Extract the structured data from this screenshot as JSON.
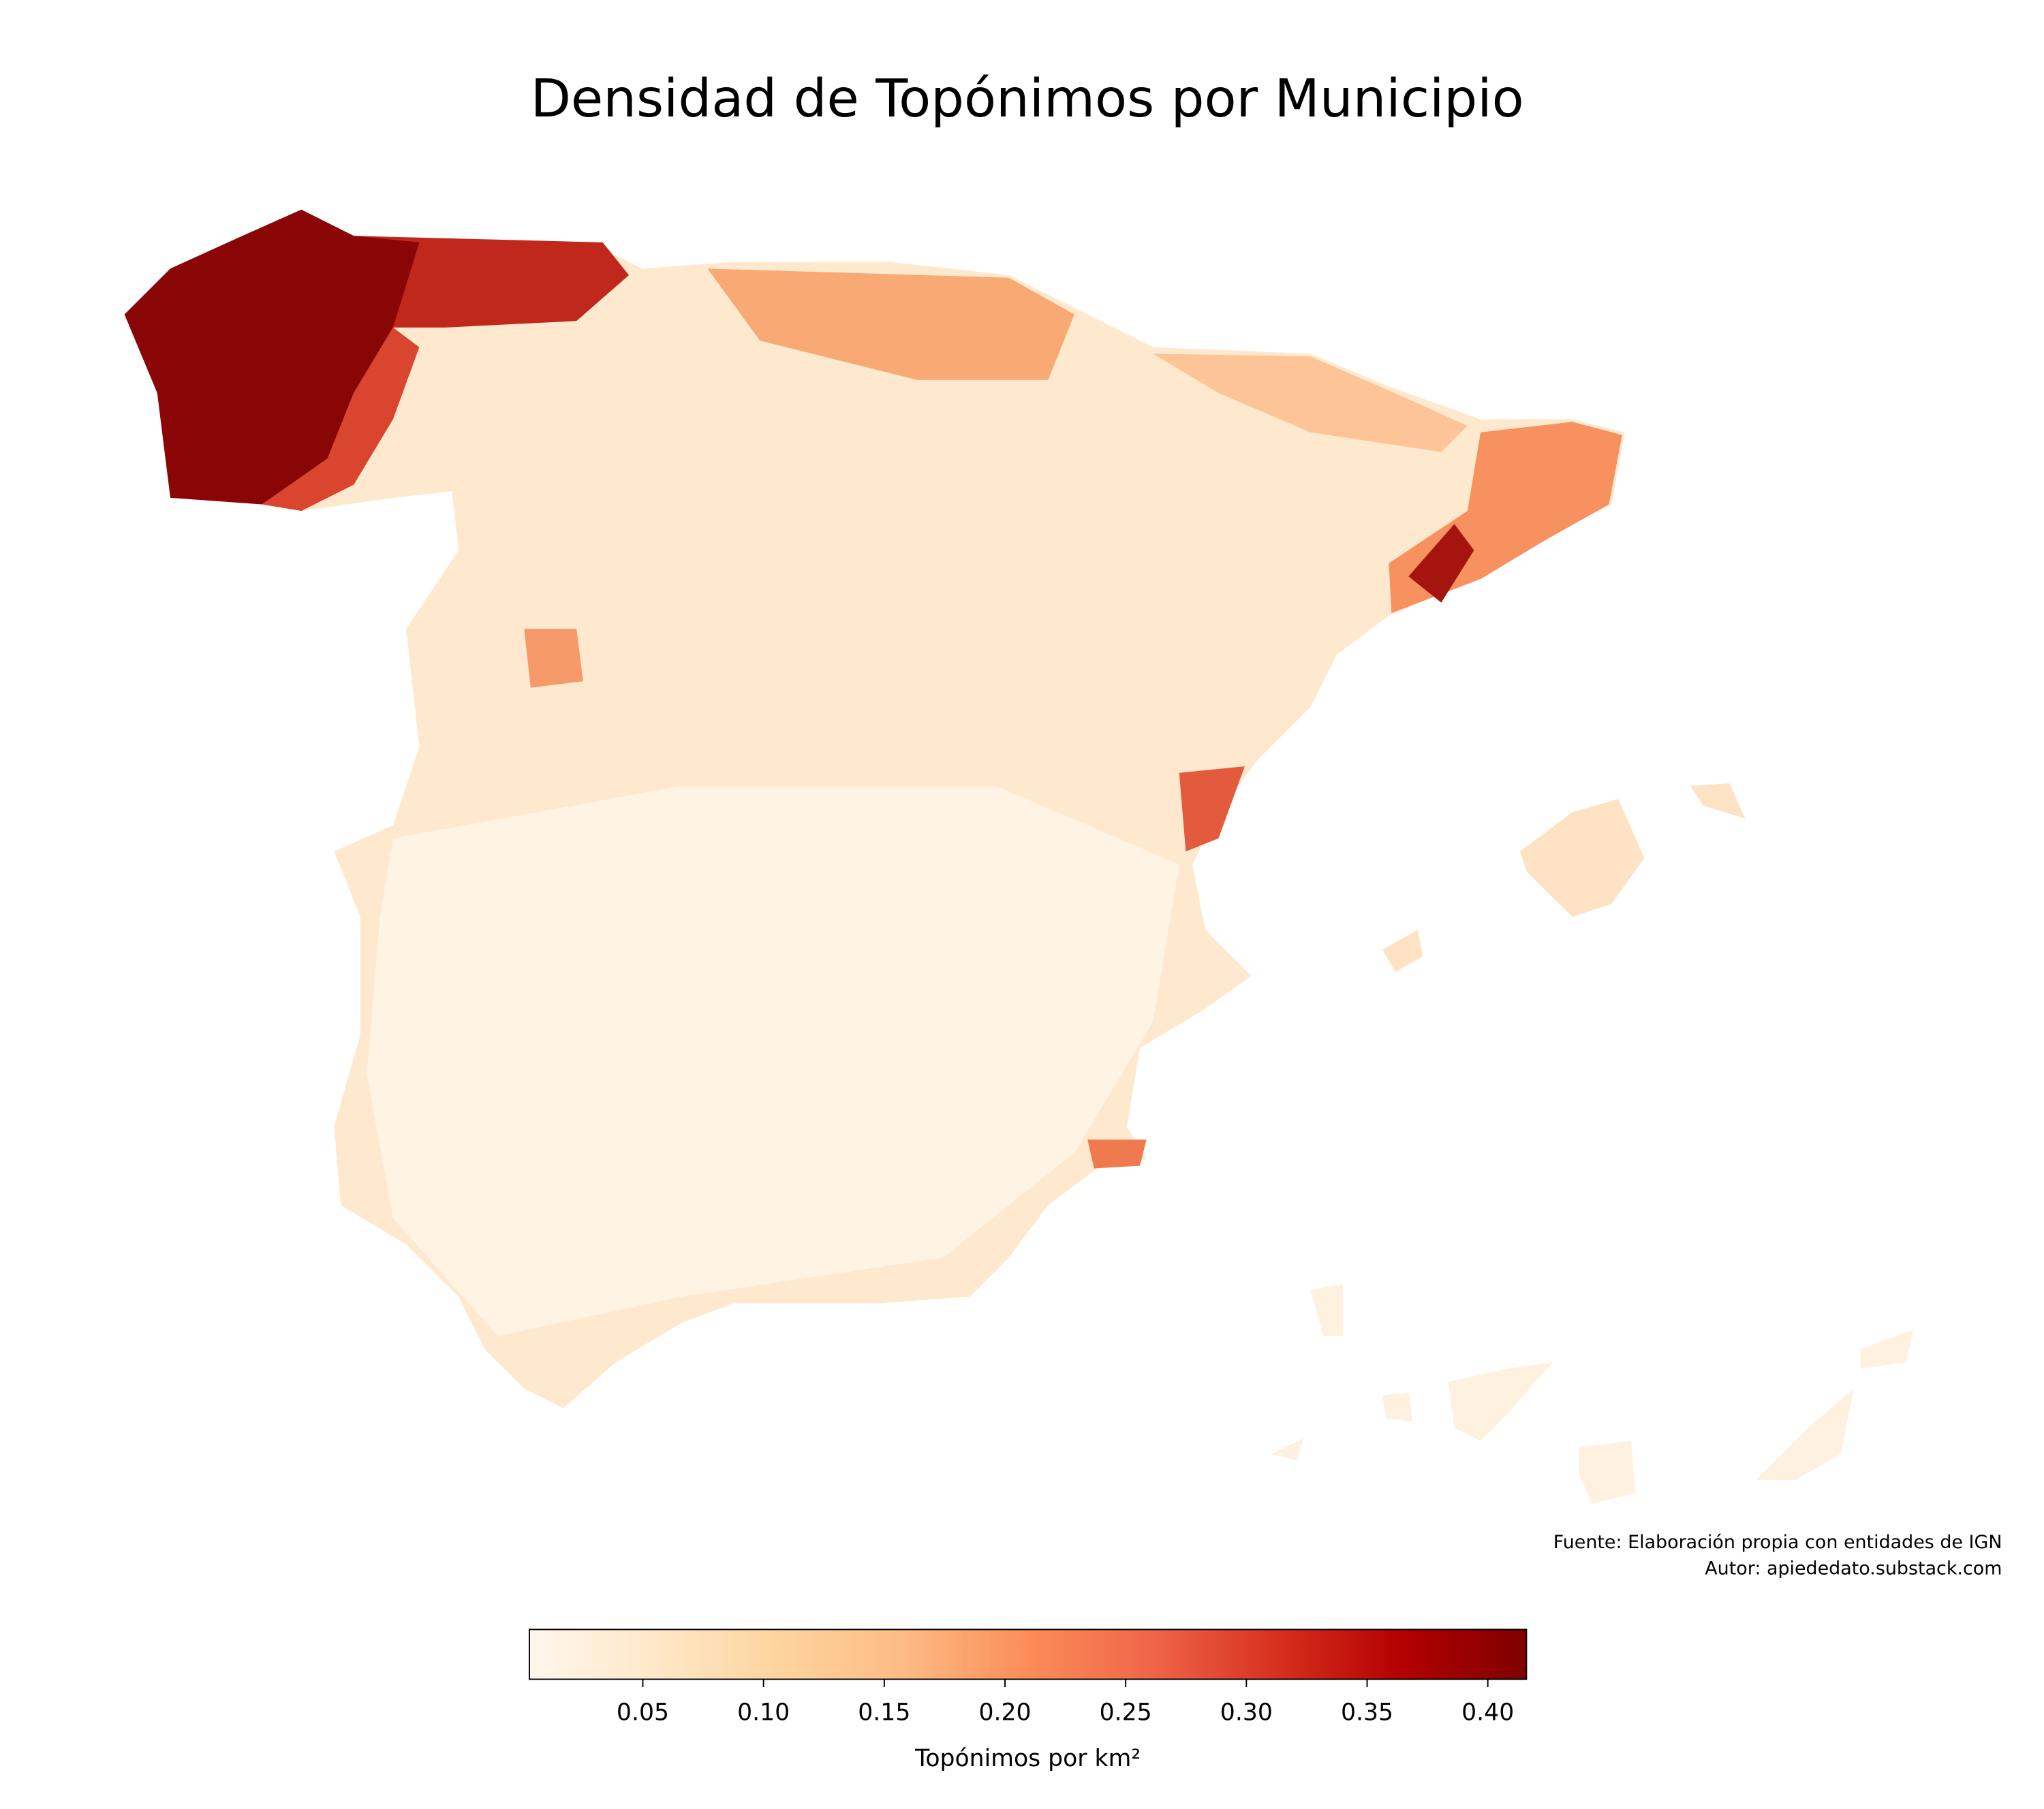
{
  "title": "Densidad de Topónimos por Municipio",
  "notes": [
    "Fuente: Elaboración propia con entidades de IGN",
    "Autor: apiededato.substack.com"
  ],
  "colorbar": {
    "label": "Topónimos por km²",
    "range": [
      0.003,
      0.416
    ],
    "colors": [
      "#fff7ec",
      "#fee8c8",
      "#fdd49e",
      "#fdbb84",
      "#fc8d59",
      "#ef6548",
      "#d7301f",
      "#b30000",
      "#7f0000"
    ],
    "ticks": [
      0.05,
      {
        "value": 0.1,
        "label": "0.10"
      },
      0.15,
      {
        "value": 0.2,
        "label": "0.20"
      },
      0.25,
      {
        "value": 0.3,
        "label": "0.30"
      },
      0.35,
      {
        "value": 0.4,
        "label": "0.40"
      }
    ]
  }
}
